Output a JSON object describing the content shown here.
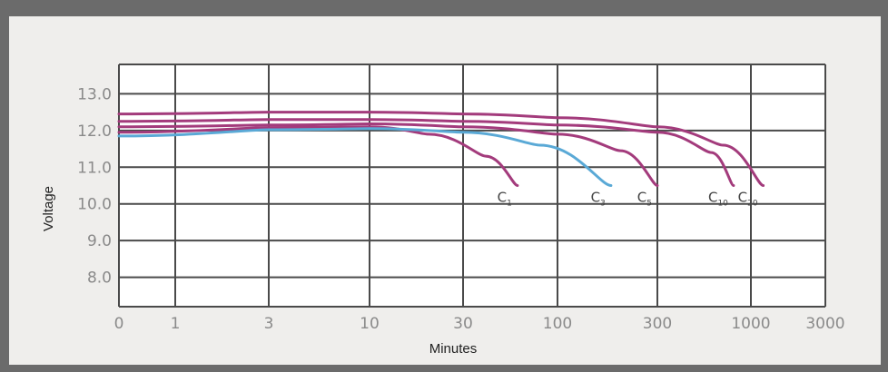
{
  "chart_data": {
    "type": "line",
    "xlabel": "Minutes",
    "ylabel": "Voltage",
    "x_ticks": [
      "0",
      "1",
      "3",
      "10",
      "30",
      "100",
      "300",
      "1000",
      "3000"
    ],
    "y_ticks": [
      "13.0",
      "12.0",
      "11.0",
      "10.0",
      "9.0",
      "8.0"
    ],
    "ylim": [
      7.2,
      13.8
    ],
    "grid": true,
    "series": [
      {
        "name": "C1",
        "color": "#a33b7c",
        "x": [
          0,
          3,
          10,
          20,
          40,
          60
        ],
        "y": [
          11.95,
          12.08,
          12.1,
          11.9,
          11.3,
          10.5
        ]
      },
      {
        "name": "C3",
        "color": "#5aa9d6",
        "x": [
          0,
          3,
          10,
          30,
          80,
          180
        ],
        "y": [
          11.85,
          12.02,
          12.05,
          11.95,
          11.6,
          10.5
        ]
      },
      {
        "name": "C5",
        "color": "#a33b7c",
        "x": [
          0,
          3,
          10,
          30,
          100,
          200,
          300
        ],
        "y": [
          12.1,
          12.15,
          12.18,
          12.1,
          11.9,
          11.45,
          10.5
        ]
      },
      {
        "name": "C10",
        "color": "#a33b7c",
        "x": [
          0,
          3,
          10,
          30,
          100,
          300,
          600,
          800
        ],
        "y": [
          12.25,
          12.3,
          12.3,
          12.25,
          12.15,
          11.95,
          11.4,
          10.5
        ]
      },
      {
        "name": "C20",
        "color": "#a33b7c",
        "x": [
          0,
          3,
          10,
          30,
          100,
          300,
          700,
          1200
        ],
        "y": [
          12.45,
          12.5,
          12.5,
          12.45,
          12.35,
          12.1,
          11.6,
          10.5
        ]
      }
    ]
  }
}
